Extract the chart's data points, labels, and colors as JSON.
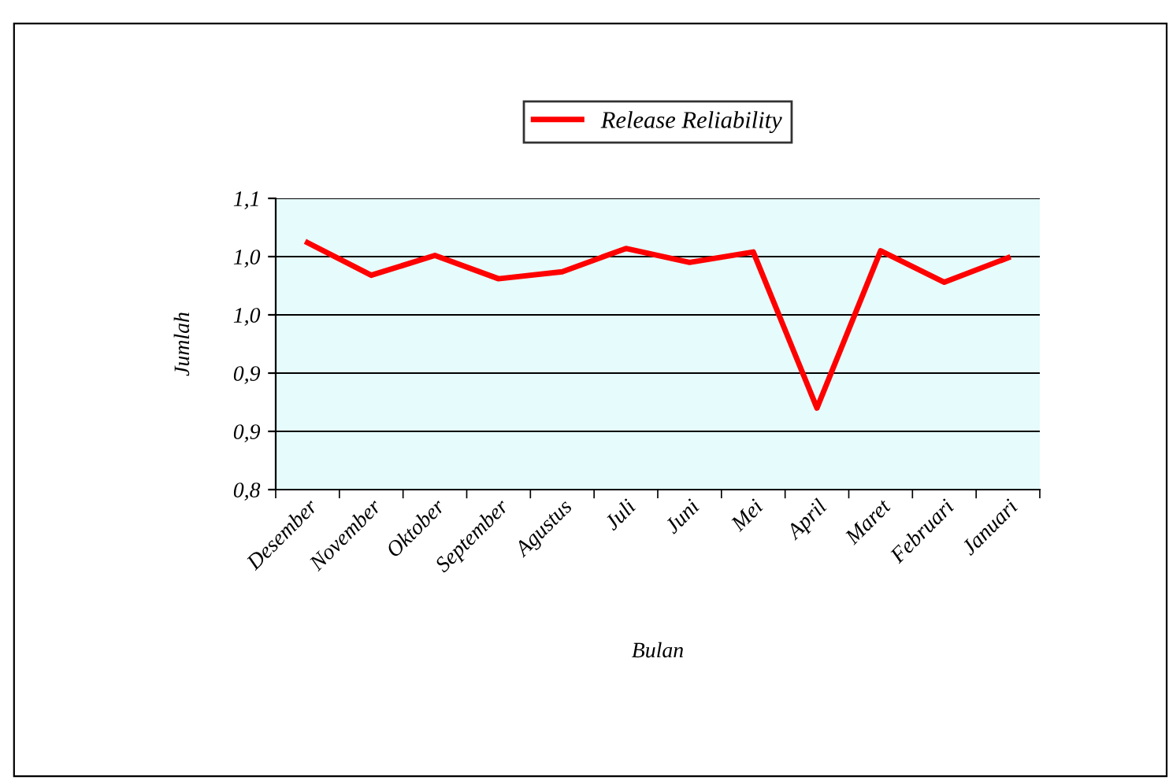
{
  "chart_data": {
    "type": "line",
    "xlabel": "Bulan",
    "ylabel": "Jumlah",
    "categories": [
      "Desember",
      "November",
      "Oktober",
      "September",
      "Agustus",
      "Juli",
      "Juni",
      "Mei",
      "April",
      "Maret",
      "Februari",
      "Januari"
    ],
    "series": [
      {
        "name": "Release Reliability",
        "color": "#ff0000",
        "values": [
          1.012,
          0.984,
          1.001,
          0.981,
          0.987,
          1.007,
          0.995,
          1.004,
          0.87,
          1.005,
          0.978,
          0.999
        ]
      }
    ],
    "ylim": [
      0.8,
      1.05
    ],
    "yticks": [
      {
        "value": 0.8,
        "label": "0,8"
      },
      {
        "value": 0.85,
        "label": "0,9"
      },
      {
        "value": 0.9,
        "label": "0,9"
      },
      {
        "value": 0.95,
        "label": "1,0"
      },
      {
        "value": 1.0,
        "label": "1,0"
      },
      {
        "value": 1.05,
        "label": "1,1"
      }
    ],
    "grid": "y",
    "legend": "top",
    "marker": "none",
    "line_style": "solid"
  }
}
